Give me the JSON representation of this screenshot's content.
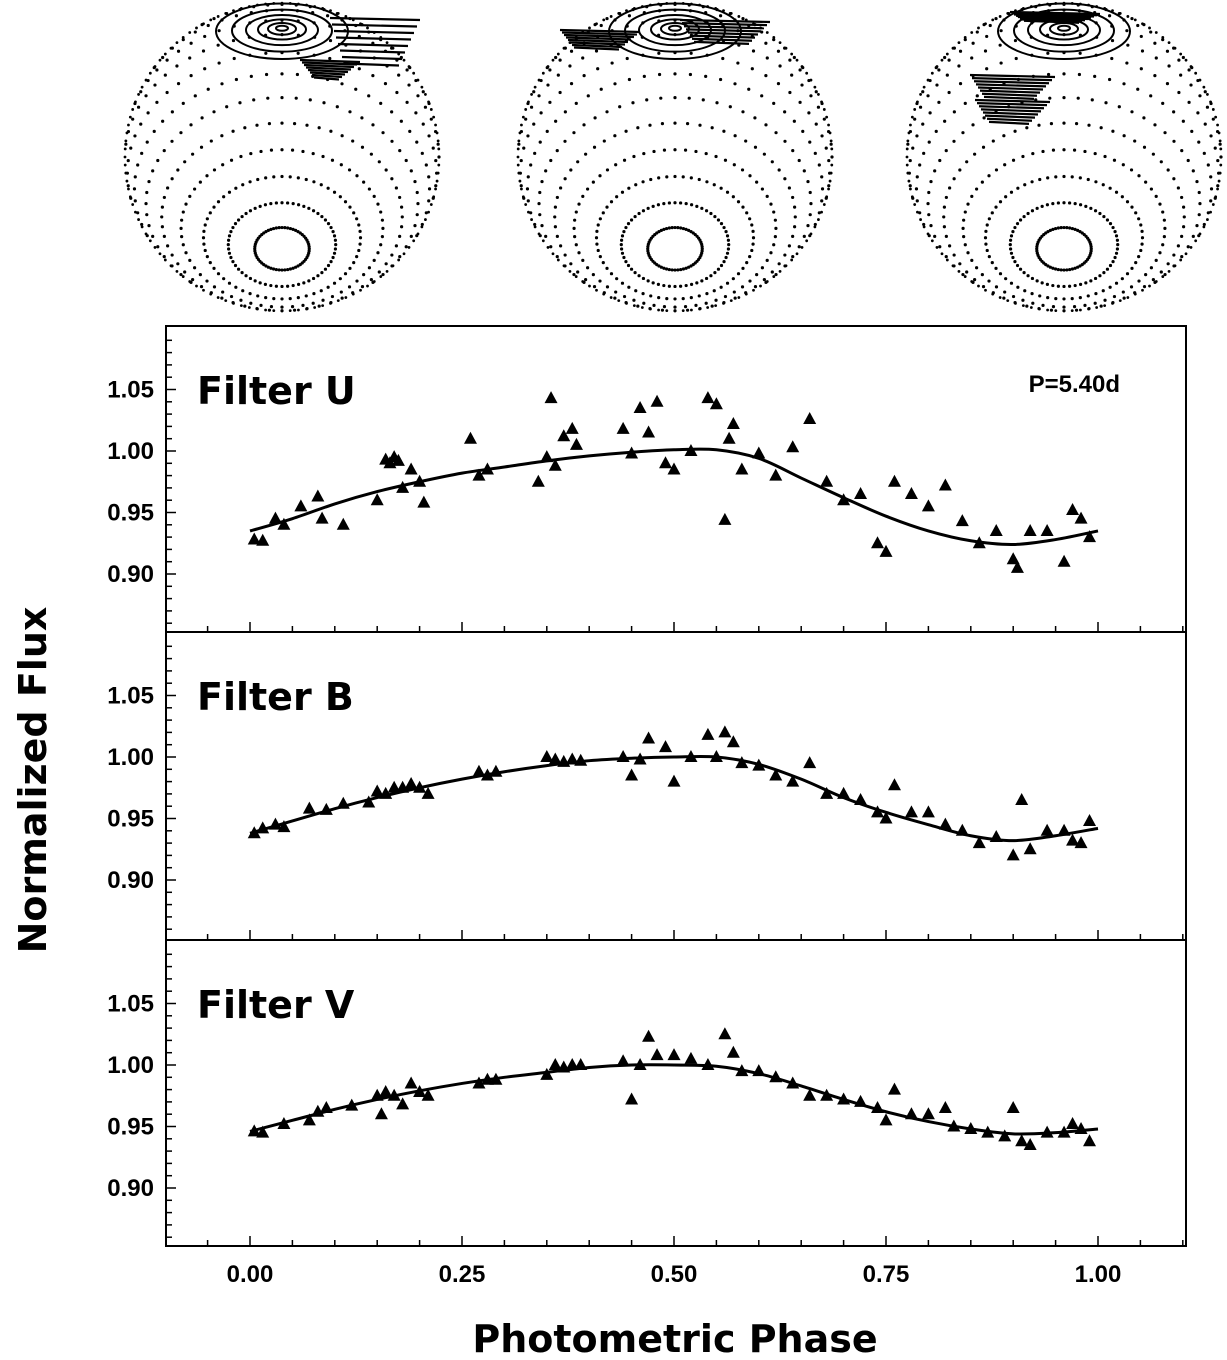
{
  "figure": {
    "xlabel": "Photometric Phase",
    "ylabel": "Normalized Flux",
    "period_label": "P=5.40d"
  },
  "chart_data": {
    "type": "scatter",
    "xlabel": "Photometric Phase",
    "ylabel": "Normalized Flux",
    "xlim": [
      -0.09,
      1.1
    ],
    "ylim": [
      0.86,
      1.09
    ],
    "x_ticks": [
      "0.00",
      "0.25",
      "0.50",
      "0.75",
      "1.00"
    ],
    "y_ticks": [
      "0.90",
      "0.95",
      "1.00",
      "1.05"
    ],
    "annotation": "P=5.40d",
    "grid": false,
    "marker": "triangle",
    "color": "#000000",
    "panels": [
      {
        "name": "Filter U",
        "fit": {
          "x": [
            0.0,
            0.05,
            0.1,
            0.15,
            0.2,
            0.25,
            0.3,
            0.35,
            0.4,
            0.45,
            0.5,
            0.55,
            0.6,
            0.65,
            0.7,
            0.75,
            0.8,
            0.85,
            0.9,
            0.95,
            1.0
          ],
          "y": [
            0.935,
            0.945,
            0.957,
            0.967,
            0.975,
            0.982,
            0.987,
            0.992,
            0.996,
            0.999,
            1.001,
            1.001,
            0.994,
            0.978,
            0.962,
            0.947,
            0.935,
            0.927,
            0.924,
            0.928,
            0.935
          ]
        },
        "points": {
          "x": [
            0.005,
            0.015,
            0.03,
            0.04,
            0.06,
            0.08,
            0.085,
            0.11,
            0.15,
            0.16,
            0.165,
            0.17,
            0.175,
            0.18,
            0.19,
            0.2,
            0.205,
            0.26,
            0.27,
            0.28,
            0.34,
            0.35,
            0.355,
            0.36,
            0.37,
            0.38,
            0.385,
            0.44,
            0.45,
            0.46,
            0.47,
            0.48,
            0.49,
            0.5,
            0.52,
            0.54,
            0.55,
            0.56,
            0.565,
            0.57,
            0.58,
            0.6,
            0.62,
            0.64,
            0.66,
            0.68,
            0.7,
            0.72,
            0.74,
            0.75,
            0.76,
            0.78,
            0.8,
            0.82,
            0.84,
            0.86,
            0.88,
            0.9,
            0.905,
            0.92,
            0.94,
            0.96,
            0.97,
            0.98,
            0.99
          ],
          "y": [
            0.928,
            0.927,
            0.945,
            0.94,
            0.955,
            0.963,
            0.945,
            0.94,
            0.96,
            0.993,
            0.99,
            0.995,
            0.992,
            0.97,
            0.985,
            0.975,
            0.958,
            1.01,
            0.98,
            0.985,
            0.975,
            0.995,
            1.043,
            0.988,
            1.012,
            1.018,
            1.005,
            1.018,
            0.998,
            1.035,
            1.015,
            1.04,
            0.99,
            0.985,
            1.0,
            1.043,
            1.038,
            0.944,
            1.01,
            1.022,
            0.985,
            0.998,
            0.98,
            1.003,
            1.026,
            0.975,
            0.96,
            0.965,
            0.925,
            0.918,
            0.975,
            0.965,
            0.955,
            0.972,
            0.943,
            0.925,
            0.935,
            0.912,
            0.905,
            0.935,
            0.935,
            0.91,
            0.952,
            0.945,
            0.93
          ]
        }
      },
      {
        "name": "Filter B",
        "fit": {
          "x": [
            0.0,
            0.05,
            0.1,
            0.15,
            0.2,
            0.25,
            0.3,
            0.35,
            0.4,
            0.45,
            0.5,
            0.55,
            0.6,
            0.65,
            0.7,
            0.75,
            0.8,
            0.85,
            0.9,
            0.95,
            1.0
          ],
          "y": [
            0.938,
            0.948,
            0.958,
            0.967,
            0.975,
            0.982,
            0.988,
            0.993,
            0.997,
            0.999,
            1.0,
            1.0,
            0.994,
            0.982,
            0.967,
            0.955,
            0.945,
            0.936,
            0.932,
            0.936,
            0.942
          ]
        },
        "points": {
          "x": [
            0.005,
            0.015,
            0.03,
            0.04,
            0.07,
            0.09,
            0.11,
            0.14,
            0.15,
            0.16,
            0.17,
            0.18,
            0.19,
            0.2,
            0.21,
            0.27,
            0.28,
            0.29,
            0.35,
            0.36,
            0.37,
            0.38,
            0.39,
            0.44,
            0.45,
            0.46,
            0.47,
            0.49,
            0.5,
            0.52,
            0.54,
            0.55,
            0.56,
            0.57,
            0.58,
            0.6,
            0.62,
            0.64,
            0.66,
            0.68,
            0.7,
            0.72,
            0.74,
            0.75,
            0.76,
            0.78,
            0.8,
            0.82,
            0.84,
            0.86,
            0.88,
            0.9,
            0.91,
            0.92,
            0.94,
            0.96,
            0.97,
            0.98,
            0.99
          ],
          "y": [
            0.938,
            0.942,
            0.945,
            0.943,
            0.958,
            0.957,
            0.962,
            0.963,
            0.972,
            0.97,
            0.975,
            0.975,
            0.978,
            0.975,
            0.97,
            0.988,
            0.985,
            0.988,
            1.0,
            0.998,
            0.996,
            0.998,
            0.997,
            1.0,
            0.985,
            0.998,
            1.015,
            1.008,
            0.98,
            1.0,
            1.018,
            1.0,
            1.02,
            1.012,
            0.995,
            0.993,
            0.985,
            0.98,
            0.995,
            0.97,
            0.97,
            0.965,
            0.955,
            0.95,
            0.977,
            0.955,
            0.955,
            0.945,
            0.94,
            0.93,
            0.935,
            0.92,
            0.965,
            0.925,
            0.94,
            0.94,
            0.932,
            0.93,
            0.948
          ]
        }
      },
      {
        "name": "Filter V",
        "fit": {
          "x": [
            0.0,
            0.05,
            0.1,
            0.15,
            0.2,
            0.25,
            0.3,
            0.35,
            0.4,
            0.45,
            0.5,
            0.55,
            0.6,
            0.65,
            0.7,
            0.75,
            0.8,
            0.85,
            0.9,
            0.95,
            1.0
          ],
          "y": [
            0.946,
            0.955,
            0.964,
            0.972,
            0.979,
            0.985,
            0.99,
            0.994,
            0.998,
            1.0,
            1.0,
            0.999,
            0.993,
            0.983,
            0.972,
            0.962,
            0.954,
            0.948,
            0.944,
            0.945,
            0.948
          ]
        },
        "points": {
          "x": [
            0.005,
            0.015,
            0.04,
            0.07,
            0.08,
            0.09,
            0.12,
            0.15,
            0.155,
            0.16,
            0.17,
            0.18,
            0.19,
            0.2,
            0.21,
            0.27,
            0.28,
            0.29,
            0.35,
            0.36,
            0.37,
            0.38,
            0.39,
            0.44,
            0.45,
            0.46,
            0.47,
            0.48,
            0.5,
            0.52,
            0.54,
            0.56,
            0.57,
            0.58,
            0.6,
            0.62,
            0.64,
            0.66,
            0.68,
            0.7,
            0.72,
            0.74,
            0.75,
            0.76,
            0.78,
            0.8,
            0.82,
            0.83,
            0.85,
            0.87,
            0.89,
            0.9,
            0.91,
            0.92,
            0.94,
            0.96,
            0.97,
            0.98,
            0.99
          ],
          "y": [
            0.946,
            0.945,
            0.952,
            0.955,
            0.962,
            0.965,
            0.967,
            0.975,
            0.96,
            0.978,
            0.975,
            0.968,
            0.985,
            0.978,
            0.975,
            0.985,
            0.988,
            0.988,
            0.992,
            1.0,
            0.998,
            1.0,
            1.0,
            1.003,
            0.972,
            1.0,
            1.023,
            1.008,
            1.008,
            1.005,
            1.0,
            1.025,
            1.01,
            0.995,
            0.995,
            0.99,
            0.985,
            0.975,
            0.975,
            0.972,
            0.97,
            0.965,
            0.955,
            0.98,
            0.96,
            0.96,
            0.965,
            0.95,
            0.948,
            0.945,
            0.942,
            0.965,
            0.938,
            0.935,
            0.945,
            0.945,
            0.952,
            0.948,
            0.938
          ]
        }
      }
    ]
  }
}
